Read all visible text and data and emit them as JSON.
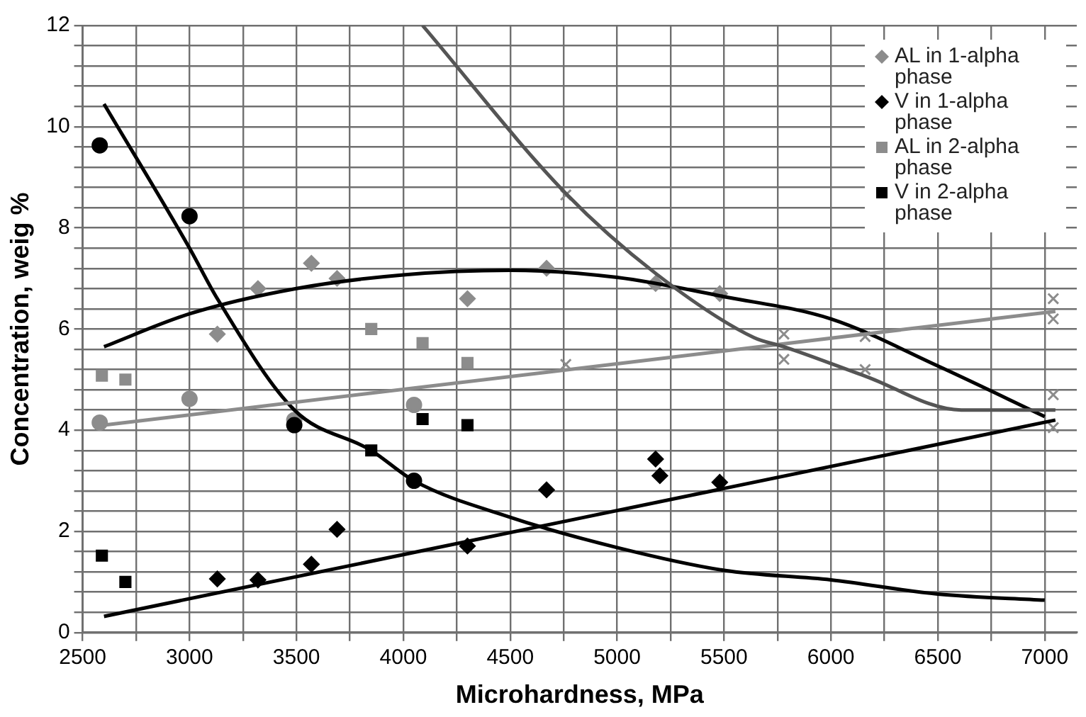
{
  "chart_data": {
    "type": "scatter",
    "xlabel": "Microhardness, MPa",
    "ylabel": "Concentration, weig %",
    "xlim": [
      2500,
      7150
    ],
    "xticks": [
      2500,
      {
        "value": 2750,
        "label": null
      },
      3000,
      {
        "value": 3250,
        "label": null
      },
      3500,
      {
        "value": 3750,
        "label": null
      },
      4000,
      {
        "value": 4250,
        "label": null
      },
      4500,
      {
        "value": 4750,
        "label": null
      },
      5000,
      {
        "value": 5250,
        "label": null
      },
      5500,
      {
        "value": 5750,
        "label": null
      },
      6000,
      {
        "value": 6250,
        "label": null
      },
      6500,
      {
        "value": 6750,
        "label": null
      },
      7000
    ],
    "ylim": [
      0,
      12
    ],
    "yticks": [
      0,
      {
        "value": 0.4,
        "label": null
      },
      {
        "value": 0.8,
        "label": null
      },
      {
        "value": 1.2,
        "label": null
      },
      {
        "value": 1.6,
        "label": null
      },
      2,
      {
        "value": 2.4,
        "label": null
      },
      {
        "value": 2.8,
        "label": null
      },
      {
        "value": 3.2,
        "label": null
      },
      {
        "value": 3.6,
        "label": null
      },
      4,
      {
        "value": 4.4,
        "label": null
      },
      {
        "value": 4.8,
        "label": null
      },
      {
        "value": 5.2,
        "label": null
      },
      {
        "value": 5.6,
        "label": null
      },
      6,
      {
        "value": 6.4,
        "label": null
      },
      {
        "value": 6.8,
        "label": null
      },
      {
        "value": 7.2,
        "label": null
      },
      {
        "value": 7.6,
        "label": null
      },
      8,
      {
        "value": 8.4,
        "label": null
      },
      {
        "value": 8.8,
        "label": null
      },
      {
        "value": 9.2,
        "label": null
      },
      {
        "value": 9.6,
        "label": null
      },
      10,
      {
        "value": 10.4,
        "label": null
      },
      {
        "value": 10.8,
        "label": null
      },
      {
        "value": 11.2,
        "label": null
      },
      {
        "value": 11.6,
        "label": null
      },
      12
    ],
    "grid": true,
    "legend": "top right",
    "series": [
      {
        "name": "AL in 1-alpha phase",
        "color": "#8c8c8c",
        "marker": "diamond",
        "x": [
          3130,
          3320,
          3570,
          3690,
          4300,
          4670,
          5180,
          5480
        ],
        "values": [
          5.9,
          6.8,
          7.3,
          7.0,
          6.6,
          7.2,
          6.9,
          6.7
        ]
      },
      {
        "name": "V  in 1-alpha phase",
        "color": "#000000",
        "marker": "diamond",
        "x": [
          3130,
          3320,
          3570,
          3690,
          4300,
          4670,
          5180,
          5200,
          5480
        ],
        "values": [
          1.06,
          1.04,
          1.35,
          2.04,
          1.71,
          2.82,
          3.43,
          3.1,
          2.97
        ]
      },
      {
        "name": "AL in 2-alpha phase",
        "color": "#8c8c8c",
        "marker": "square",
        "x": [
          2590,
          2700,
          3850,
          4090,
          4300
        ],
        "values": [
          5.08,
          5.0,
          6.0,
          5.72,
          5.33
        ]
      },
      {
        "name": "V  in 2-alpha phase",
        "color": "#000000",
        "marker": "square",
        "x": [
          2590,
          2700,
          3850,
          4090,
          4300
        ],
        "values": [
          1.52,
          1.0,
          3.6,
          4.22,
          4.1
        ]
      },
      {
        "color": "#8c8c8c",
        "marker": "circle",
        "x": [
          2580,
          3000,
          3490,
          4050
        ],
        "values": [
          4.15,
          4.62,
          4.2,
          4.5
        ]
      },
      {
        "color": "#000000",
        "marker": "circle",
        "x": [
          2580,
          3000,
          3490,
          4050
        ],
        "values": [
          9.63,
          8.23,
          4.1,
          3.0
        ]
      },
      {
        "color": "#8c8c8c",
        "marker": "cross",
        "x": [
          4760,
          4760,
          5780,
          5780,
          6160,
          6160,
          7040,
          7040,
          7040,
          7040
        ],
        "values": [
          8.65,
          5.3,
          5.9,
          5.4,
          5.85,
          5.2,
          6.6,
          6.2,
          4.7,
          4.05
        ]
      },
      {
        "type": "line",
        "color": "#000000",
        "marker": "none",
        "x": [
          2600,
          3000,
          3130,
          3490,
          3850,
          4050,
          4500,
          5000,
          5500,
          6000,
          6500,
          7000
        ],
        "values": [
          10.45,
          7.6,
          6.6,
          4.4,
          3.6,
          3.0,
          2.28,
          1.68,
          1.23,
          1.04,
          0.76,
          0.64
        ]
      },
      {
        "type": "line",
        "color": "#000000",
        "marker": "none",
        "x": [
          2600,
          3000,
          3500,
          4000,
          4500,
          5000,
          5500,
          6000,
          6500,
          7000
        ],
        "values": [
          5.65,
          6.3,
          6.8,
          7.07,
          7.16,
          7.02,
          6.64,
          6.2,
          5.27,
          4.27
        ]
      },
      {
        "type": "line",
        "color": "#8c8c8c",
        "marker": "none",
        "x": [
          2600,
          7050
        ],
        "values": [
          4.1,
          6.35
        ]
      },
      {
        "type": "line",
        "color": "#000000",
        "marker": "none",
        "x": [
          2600,
          7050
        ],
        "values": [
          0.32,
          4.2
        ]
      },
      {
        "type": "line",
        "color": "#555555",
        "marker": "none",
        "x": [
          4090,
          4760,
          5180,
          5640,
          5780,
          6160,
          6610,
          7050
        ],
        "values": [
          12,
          8.68,
          7.1,
          5.83,
          5.65,
          5.07,
          4.4,
          4.4
        ]
      }
    ]
  }
}
